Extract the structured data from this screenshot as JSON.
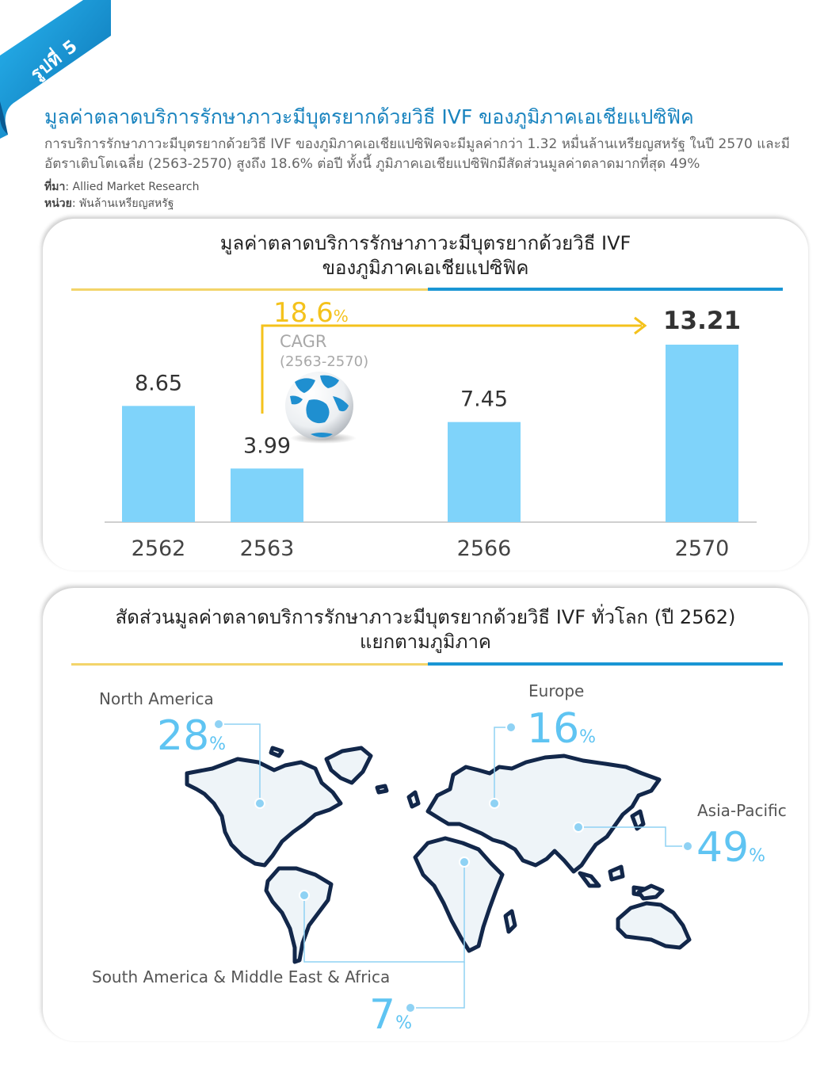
{
  "figure": {
    "badge": "รูปที่ 5",
    "title": "มูลค่าตลาดบริการรักษาภาวะมีบุตรยากด้วยวิธี IVF ของภูมิภาคเอเชียแปซิฟิค",
    "description": "การบริการรักษาภาวะมีบุตรยากด้วยวิธี IVF ของภูมิภาคเอเชียแปซิฟิคจะมีมูลค่ากว่า 1.32 หมื่นล้านเหรียญสหรัฐ ในปี 2570 และมีอัตราเติบโตเฉลี่ย (2563-2570) สูงถึง 18.6% ต่อปี ทั้งนี้ ภูมิภาคเอเชียแปซิฟิกมีสัดส่วนมูลค่าตลาดมากที่สุด 49%",
    "source_label": "ที่มา",
    "source_value": ": Allied Market Research",
    "unit_label": "หน่วย",
    "unit_value": ": พันล้านเหรียญสหรัฐ"
  },
  "colors": {
    "accent_blue": "#1a96d4",
    "bar_blue": "#7fd3fa",
    "cagr_yellow": "#f4c21c",
    "map_fill": "#eef4f8",
    "map_stroke": "#12274a"
  },
  "chart_data": [
    {
      "type": "bar",
      "title_line1": "มูลค่าตลาดบริการรักษาภาวะมีบุตรยากด้วยวิธี IVF",
      "title_line2": "ของภูมิภาคเอเชียแปซิฟิค",
      "categories": [
        "2562",
        "2563",
        "2566",
        "2570"
      ],
      "values": [
        8.65,
        3.99,
        7.45,
        13.21
      ],
      "value_labels": [
        "8.65",
        "3.99",
        "7.45",
        "13.21"
      ],
      "ylim": [
        0,
        14
      ],
      "cagr": {
        "value": "18.6",
        "unit": "%",
        "label": "CAGR",
        "period": "(2563-2570)"
      },
      "grid": false
    },
    {
      "type": "map",
      "title_line1": "สัดส่วนมูลค่าตลาดบริการรักษาภาวะมีบุตรยากด้วยวิธี IVF ทั่วโลก (ปี 2562)",
      "title_line2": "แยกตามภูมิภาค",
      "regions": [
        {
          "name": "North America",
          "share": "28",
          "unit": "%"
        },
        {
          "name": "Europe",
          "share": "16",
          "unit": "%"
        },
        {
          "name": "Asia-Pacific",
          "share": "49",
          "unit": "%"
        },
        {
          "name": "South America & Middle East & Africa",
          "share": "7",
          "unit": "%"
        }
      ]
    }
  ]
}
